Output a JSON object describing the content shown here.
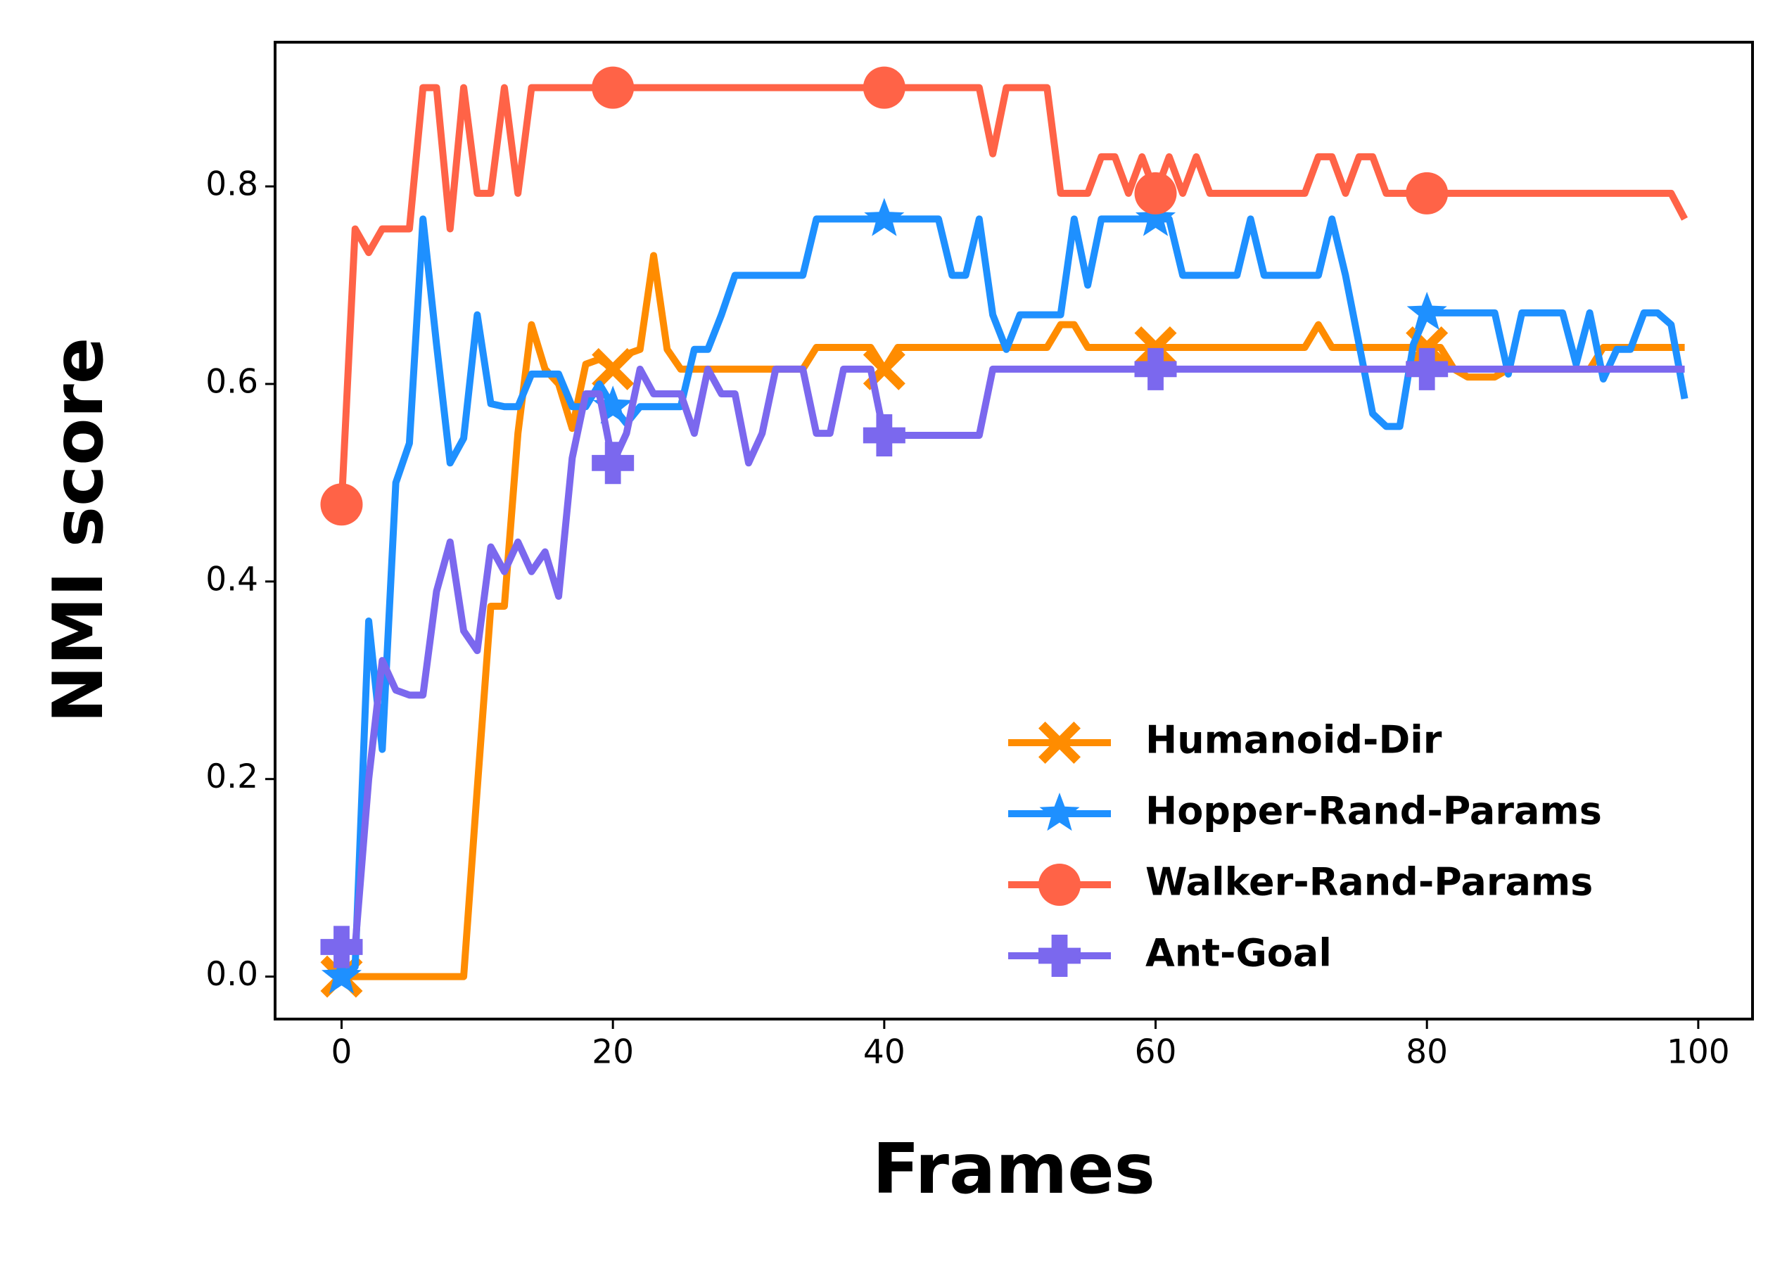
{
  "chart_data": {
    "type": "line",
    "x_label": "Frames",
    "y_label": "NMI score",
    "x": [
      0,
      1,
      2,
      3,
      4,
      5,
      6,
      7,
      8,
      9,
      10,
      11,
      12,
      13,
      14,
      15,
      16,
      17,
      18,
      19,
      20,
      21,
      22,
      23,
      24,
      25,
      26,
      27,
      28,
      29,
      30,
      31,
      32,
      33,
      34,
      35,
      36,
      37,
      38,
      39,
      40,
      41,
      42,
      43,
      44,
      45,
      46,
      47,
      48,
      49,
      50,
      51,
      52,
      53,
      54,
      55,
      56,
      57,
      58,
      59,
      60,
      61,
      62,
      63,
      64,
      65,
      66,
      67,
      68,
      69,
      70,
      71,
      72,
      73,
      74,
      75,
      76,
      77,
      78,
      79,
      80,
      81,
      82,
      83,
      84,
      85,
      86,
      87,
      88,
      89,
      90,
      91,
      92,
      93,
      94,
      95,
      96,
      97,
      98,
      99
    ],
    "xlim": [
      -4.9,
      104
    ],
    "ylim": [
      -0.043,
      0.946
    ],
    "xticks": [
      0,
      20,
      40,
      60,
      80,
      100
    ],
    "yticks": [
      {
        "value": 0,
        "label": "0.0"
      },
      0.2,
      0.4,
      0.6,
      0.8
    ],
    "markevery": 20,
    "legend": "lower right",
    "series": [
      {
        "name": "Humanoid-Dir",
        "color": "#ff8c00",
        "marker": "X",
        "values": [
          0,
          0,
          0,
          0,
          0,
          0,
          0,
          0,
          0,
          0,
          0.19,
          0.375,
          0.375,
          0.55,
          0.66,
          0.615,
          0.6,
          0.555,
          0.62,
          0.625,
          0.615,
          0.63,
          0.635,
          0.73,
          0.635,
          0.615,
          0.615,
          0.615,
          0.615,
          0.615,
          0.615,
          0.615,
          0.615,
          0.615,
          0.615,
          0.637,
          0.637,
          0.637,
          0.637,
          0.637,
          0.615,
          0.637,
          0.637,
          0.637,
          0.637,
          0.637,
          0.637,
          0.637,
          0.637,
          0.637,
          0.637,
          0.637,
          0.637,
          0.66,
          0.66,
          0.637,
          0.637,
          0.637,
          0.637,
          0.637,
          0.637,
          0.637,
          0.637,
          0.637,
          0.637,
          0.637,
          0.637,
          0.637,
          0.637,
          0.637,
          0.637,
          0.637,
          0.66,
          0.637,
          0.637,
          0.637,
          0.637,
          0.637,
          0.637,
          0.637,
          0.637,
          0.637,
          0.615,
          0.607,
          0.607,
          0.607,
          0.615,
          0.615,
          0.615,
          0.615,
          0.615,
          0.615,
          0.615,
          0.637,
          0.637,
          0.637,
          0.637,
          0.637,
          0.637,
          0.637
        ]
      },
      {
        "name": "Hopper-Rand-Params",
        "color": "#1e90ff",
        "marker": "*",
        "values": [
          0,
          0.01,
          0.36,
          0.23,
          0.5,
          0.54,
          0.767,
          0.64,
          0.52,
          0.545,
          0.67,
          0.58,
          0.577,
          0.577,
          0.61,
          0.61,
          0.61,
          0.577,
          0.577,
          0.6,
          0.577,
          0.56,
          0.577,
          0.577,
          0.577,
          0.577,
          0.635,
          0.635,
          0.67,
          0.71,
          0.71,
          0.71,
          0.71,
          0.71,
          0.71,
          0.767,
          0.767,
          0.767,
          0.767,
          0.767,
          0.767,
          0.767,
          0.767,
          0.767,
          0.767,
          0.71,
          0.71,
          0.767,
          0.67,
          0.635,
          0.67,
          0.67,
          0.67,
          0.67,
          0.767,
          0.7,
          0.767,
          0.767,
          0.767,
          0.767,
          0.767,
          0.767,
          0.71,
          0.71,
          0.71,
          0.71,
          0.71,
          0.767,
          0.71,
          0.71,
          0.71,
          0.71,
          0.71,
          0.767,
          0.71,
          0.64,
          0.57,
          0.557,
          0.557,
          0.64,
          0.672,
          0.672,
          0.672,
          0.672,
          0.672,
          0.672,
          0.61,
          0.672,
          0.672,
          0.672,
          0.672,
          0.62,
          0.672,
          0.605,
          0.635,
          0.635,
          0.672,
          0.672,
          0.66,
          0.585
        ]
      },
      {
        "name": "Walker-Rand-Params",
        "color": "#ff6347",
        "marker": "o",
        "values": [
          0.478,
          0.757,
          0.733,
          0.757,
          0.757,
          0.757,
          0.9,
          0.9,
          0.757,
          0.9,
          0.793,
          0.793,
          0.9,
          0.793,
          0.9,
          0.9,
          0.9,
          0.9,
          0.9,
          0.9,
          0.9,
          0.9,
          0.9,
          0.9,
          0.9,
          0.9,
          0.9,
          0.9,
          0.9,
          0.9,
          0.9,
          0.9,
          0.9,
          0.9,
          0.9,
          0.9,
          0.9,
          0.9,
          0.9,
          0.9,
          0.9,
          0.9,
          0.9,
          0.9,
          0.9,
          0.9,
          0.9,
          0.9,
          0.833,
          0.9,
          0.9,
          0.9,
          0.9,
          0.793,
          0.793,
          0.793,
          0.83,
          0.83,
          0.793,
          0.83,
          0.793,
          0.83,
          0.793,
          0.83,
          0.793,
          0.793,
          0.793,
          0.793,
          0.793,
          0.793,
          0.793,
          0.793,
          0.83,
          0.83,
          0.793,
          0.83,
          0.83,
          0.793,
          0.793,
          0.793,
          0.793,
          0.793,
          0.793,
          0.793,
          0.793,
          0.793,
          0.793,
          0.793,
          0.793,
          0.793,
          0.793,
          0.793,
          0.793,
          0.793,
          0.793,
          0.793,
          0.793,
          0.793,
          0.793,
          0.767
        ]
      },
      {
        "name": "Ant-Goal",
        "color": "#7b68ee",
        "marker": "P",
        "values": [
          0.03,
          0.03,
          0.2,
          0.32,
          0.29,
          0.285,
          0.285,
          0.39,
          0.44,
          0.35,
          0.33,
          0.435,
          0.41,
          0.44,
          0.41,
          0.43,
          0.385,
          0.525,
          0.59,
          0.59,
          0.52,
          0.55,
          0.615,
          0.59,
          0.59,
          0.59,
          0.55,
          0.615,
          0.59,
          0.59,
          0.52,
          0.55,
          0.615,
          0.615,
          0.615,
          0.55,
          0.55,
          0.615,
          0.615,
          0.615,
          0.548,
          0.548,
          0.548,
          0.548,
          0.548,
          0.548,
          0.548,
          0.548,
          0.615,
          0.615,
          0.615,
          0.615,
          0.615,
          0.615,
          0.615,
          0.615,
          0.615,
          0.615,
          0.615,
          0.615,
          0.615,
          0.615,
          0.615,
          0.615,
          0.615,
          0.615,
          0.615,
          0.615,
          0.615,
          0.615,
          0.615,
          0.615,
          0.615,
          0.615,
          0.615,
          0.615,
          0.615,
          0.615,
          0.615,
          0.615,
          0.615,
          0.615,
          0.615,
          0.615,
          0.615,
          0.615,
          0.615,
          0.615,
          0.615,
          0.615,
          0.615,
          0.615,
          0.615,
          0.615,
          0.615,
          0.615,
          0.615,
          0.615,
          0.615,
          0.615
        ]
      }
    ]
  }
}
